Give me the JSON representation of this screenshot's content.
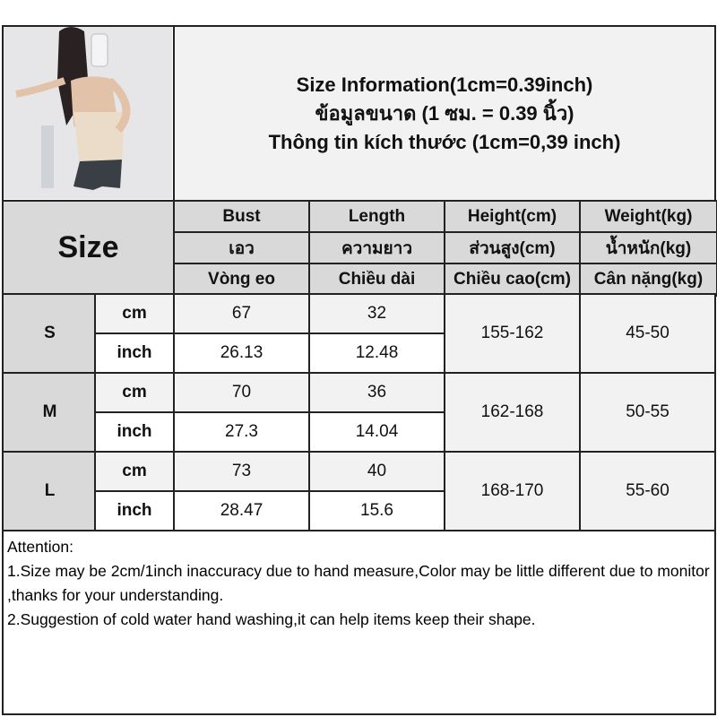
{
  "title": {
    "line1": "Size Information(1cm=0.39inch)",
    "line2": "ข้อมูลขนาด (1 ซม. = 0.39 นิ้ว)",
    "line3": "Thông tin kích thước (1cm=0,39 inch)"
  },
  "size_label": "Size",
  "columns": [
    {
      "en": "Bust",
      "th": "เอว",
      "vi": "Vòng eo"
    },
    {
      "en": "Length",
      "th": "ความยาว",
      "vi": "Chiều dài"
    },
    {
      "en": "Height(cm)",
      "th": "ส่วนสูง(cm)",
      "vi": "Chiều cao(cm)"
    },
    {
      "en": "Weight(kg)",
      "th": "น้ำหนัก(kg)",
      "vi": "Cân nặng(kg)"
    }
  ],
  "units": {
    "cm": "cm",
    "inch": "inch"
  },
  "rows": [
    {
      "size": "S",
      "bust_cm": "67",
      "length_cm": "32",
      "bust_inch": "26.13",
      "length_inch": "12.48",
      "height": "155-162",
      "weight": "45-50"
    },
    {
      "size": "M",
      "bust_cm": "70",
      "length_cm": "36",
      "bust_inch": "27.3",
      "length_inch": "14.04",
      "height": "162-168",
      "weight": "50-55"
    },
    {
      "size": "L",
      "bust_cm": "73",
      "length_cm": "40",
      "bust_inch": "28.47",
      "length_inch": "15.6",
      "height": "168-170",
      "weight": "55-60"
    }
  ],
  "notes": {
    "heading": "Attention:",
    "line1": "1.Size may be 2cm/1inch inaccuracy due to hand measure,Color may be little different due to monitor ,thanks for your understanding.",
    "line2": "2.Suggestion of cold water hand washing,it can help items keep their shape."
  }
}
